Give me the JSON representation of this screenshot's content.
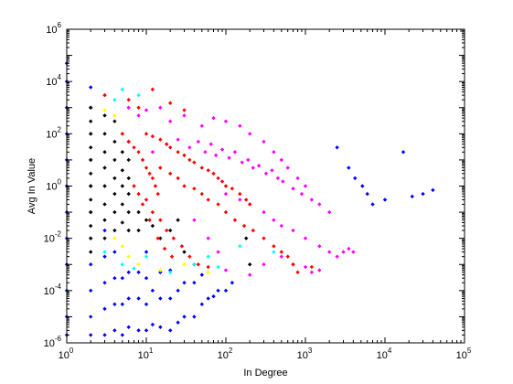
{
  "chart_data": {
    "type": "scatter",
    "title": "",
    "xlabel": "In Degree",
    "ylabel": "Avg In Value",
    "xscale": "log",
    "yscale": "log",
    "xlim": [
      1,
      100000
    ],
    "ylim": [
      1e-06,
      1000000
    ],
    "grid": false,
    "legend": "none",
    "x_ticks": [
      {
        "base": "10",
        "exp": "0",
        "value": 1
      },
      {
        "base": "10",
        "exp": "1",
        "value": 10
      },
      {
        "base": "10",
        "exp": "2",
        "value": 100
      },
      {
        "base": "10",
        "exp": "3",
        "value": 1000
      },
      {
        "base": "10",
        "exp": "4",
        "value": 10000
      },
      {
        "base": "10",
        "exp": "5",
        "value": 100000
      }
    ],
    "y_ticks": [
      {
        "base": "10",
        "exp": "-6",
        "value": 1e-06
      },
      {
        "base": "10",
        "exp": "-4",
        "value": 0.0001
      },
      {
        "base": "10",
        "exp": "-2",
        "value": 0.01
      },
      {
        "base": "10",
        "exp": "0",
        "value": 1
      },
      {
        "base": "10",
        "exp": "2",
        "value": 100
      },
      {
        "base": "10",
        "exp": "4",
        "value": 10000
      },
      {
        "base": "10",
        "exp": "6",
        "value": 1000000
      }
    ],
    "series": [
      {
        "color": "#0000ff",
        "points": [
          [
            1,
            2e-06
          ],
          [
            1,
            1e-05
          ],
          [
            1,
            0.0001
          ],
          [
            1,
            0.001
          ],
          [
            1,
            0.01
          ],
          [
            1,
            0.1
          ],
          [
            1,
            1
          ],
          [
            1,
            10
          ],
          [
            1,
            100
          ],
          [
            1,
            1000
          ],
          [
            1,
            10000
          ],
          [
            1,
            50000
          ],
          [
            2,
            2e-06
          ],
          [
            2,
            1e-05
          ],
          [
            2,
            0.0001
          ],
          [
            2,
            0.001
          ],
          [
            2,
            0.01
          ],
          [
            2,
            0.1
          ],
          [
            2,
            1
          ],
          [
            2,
            10
          ],
          [
            2,
            100
          ],
          [
            2,
            1000
          ],
          [
            2,
            6000
          ],
          [
            3,
            2e-06
          ],
          [
            3,
            2e-05
          ],
          [
            3,
            0.0002
          ],
          [
            3,
            0.002
          ],
          [
            3,
            0.02
          ],
          [
            3,
            3000
          ],
          [
            4,
            3e-06
          ],
          [
            4,
            3e-05
          ],
          [
            4,
            0.0003
          ],
          [
            4,
            0.003
          ],
          [
            5,
            2e-06
          ],
          [
            5,
            3e-05
          ],
          [
            5,
            0.0003
          ],
          [
            6,
            4e-06
          ],
          [
            6,
            5e-05
          ],
          [
            6,
            0.0005
          ],
          [
            8,
            3e-06
          ],
          [
            8,
            5e-05
          ],
          [
            8,
            0.0005
          ],
          [
            10,
            3e-06
          ],
          [
            10,
            3e-05
          ],
          [
            10,
            0.0003
          ],
          [
            10,
            0.003
          ],
          [
            12,
            5e-06
          ],
          [
            12,
            0.0001
          ],
          [
            15,
            4e-06
          ],
          [
            15,
            5e-05
          ],
          [
            15,
            0.0005
          ],
          [
            20,
            3e-06
          ],
          [
            20,
            5e-05
          ],
          [
            20,
            0.0006
          ],
          [
            25,
            6e-06
          ],
          [
            25,
            0.0001
          ],
          [
            30,
            1e-05
          ],
          [
            30,
            0.0002
          ],
          [
            40,
            1e-05
          ],
          [
            40,
            0.0002
          ],
          [
            50,
            3e-05
          ],
          [
            50,
            0.0004
          ],
          [
            60,
            5e-05
          ],
          [
            70,
            6e-05
          ],
          [
            80,
            0.0001
          ],
          [
            100,
            0.0001
          ],
          [
            120,
            0.0002
          ],
          [
            2500,
            30
          ],
          [
            3500,
            5
          ],
          [
            4200,
            2
          ],
          [
            5200,
            1
          ],
          [
            6000,
            0.5
          ],
          [
            7000,
            0.2
          ],
          [
            10000,
            0.3
          ],
          [
            17000,
            20
          ],
          [
            22000,
            0.4
          ],
          [
            30000,
            0.5
          ],
          [
            40000,
            0.7
          ]
        ]
      },
      {
        "color": "#000000",
        "points": [
          [
            2,
            1000
          ],
          [
            2,
            300
          ],
          [
            2,
            100
          ],
          [
            2,
            30
          ],
          [
            2,
            10
          ],
          [
            2,
            3
          ],
          [
            2,
            1
          ],
          [
            2,
            0.3
          ],
          [
            2,
            0.1
          ],
          [
            2,
            0.03
          ],
          [
            2,
            0.01
          ],
          [
            2,
            0.003
          ],
          [
            3,
            500
          ],
          [
            3,
            100
          ],
          [
            3,
            20
          ],
          [
            3,
            5
          ],
          [
            3,
            1
          ],
          [
            3,
            0.2
          ],
          [
            3,
            0.05
          ],
          [
            3,
            0.01
          ],
          [
            4,
            300
          ],
          [
            4,
            50
          ],
          [
            4,
            10
          ],
          [
            4,
            2
          ],
          [
            4,
            0.5
          ],
          [
            4,
            0.1
          ],
          [
            4,
            0.02
          ],
          [
            5,
            100
          ],
          [
            5,
            20
          ],
          [
            5,
            4
          ],
          [
            5,
            1
          ],
          [
            5,
            0.2
          ],
          [
            5,
            0.04
          ],
          [
            6,
            50
          ],
          [
            6,
            10
          ],
          [
            6,
            2
          ],
          [
            6,
            0.5
          ],
          [
            6,
            0.1
          ],
          [
            6,
            0.02
          ],
          [
            8,
            0.1
          ],
          [
            8,
            0.02
          ],
          [
            10,
            0.05
          ],
          [
            12,
            0.03
          ],
          [
            15,
            0.01
          ],
          [
            20,
            0.02
          ],
          [
            25,
            0.05
          ],
          [
            30,
            0.003
          ],
          [
            40,
            0.001
          ],
          [
            180,
            0.01
          ],
          [
            200,
            0.001
          ]
        ]
      },
      {
        "color": "#ffff00",
        "points": [
          [
            3,
            3000
          ],
          [
            3,
            800
          ],
          [
            4,
            500
          ],
          [
            5,
            100
          ],
          [
            4,
            0.01
          ],
          [
            5,
            0.005
          ],
          [
            6,
            0.002
          ],
          [
            8,
            0.001
          ],
          [
            15,
            0.0006
          ],
          [
            30,
            0.001
          ],
          [
            60,
            0.0005
          ]
        ]
      },
      {
        "color": "#00ffff",
        "points": [
          [
            5,
            5000
          ],
          [
            4,
            2000
          ],
          [
            6,
            1000
          ],
          [
            8,
            3000
          ],
          [
            3,
            0.003
          ],
          [
            5,
            0.001
          ],
          [
            7,
            0.0007
          ],
          [
            10,
            0.002
          ],
          [
            20,
            0.0005
          ],
          [
            40,
            0.001
          ],
          [
            60,
            0.002
          ],
          [
            80,
            0.0008
          ],
          [
            150,
            0.005
          ],
          [
            400,
            0.003
          ]
        ]
      },
      {
        "color": "#ff00ff",
        "points": [
          [
            6,
            1000
          ],
          [
            8,
            500
          ],
          [
            10,
            800
          ],
          [
            15,
            1000
          ],
          [
            20,
            300
          ],
          [
            30,
            500
          ],
          [
            50,
            200
          ],
          [
            70,
            400
          ],
          [
            100,
            300
          ],
          [
            150,
            200
          ],
          [
            200,
            100
          ],
          [
            300,
            50
          ],
          [
            400,
            20
          ],
          [
            500,
            10
          ],
          [
            600,
            5
          ],
          [
            800,
            2
          ],
          [
            1000,
            1
          ],
          [
            12,
            20
          ],
          [
            18,
            40
          ],
          [
            25,
            60
          ],
          [
            35,
            30
          ],
          [
            45,
            50
          ],
          [
            55,
            20
          ],
          [
            65,
            40
          ],
          [
            75,
            15
          ],
          [
            90,
            25
          ],
          [
            110,
            12
          ],
          [
            130,
            20
          ],
          [
            160,
            8
          ],
          [
            190,
            10
          ],
          [
            220,
            5
          ],
          [
            260,
            6
          ],
          [
            320,
            3
          ],
          [
            380,
            4
          ],
          [
            450,
            2
          ],
          [
            520,
            1.5
          ],
          [
            700,
            0.8
          ],
          [
            900,
            0.5
          ],
          [
            1200,
            0.3
          ],
          [
            1500,
            0.2
          ],
          [
            2000,
            0.1
          ],
          [
            100,
            0.5
          ],
          [
            150,
            0.3
          ],
          [
            200,
            0.2
          ],
          [
            300,
            0.1
          ],
          [
            400,
            0.05
          ],
          [
            500,
            0.03
          ],
          [
            700,
            0.02
          ],
          [
            1000,
            0.01
          ],
          [
            1500,
            0.005
          ],
          [
            2000,
            0.003
          ],
          [
            2500,
            0.002
          ],
          [
            3000,
            0.003
          ],
          [
            3500,
            0.004
          ],
          [
            4000,
            0.003
          ],
          [
            300,
            0.001
          ],
          [
            500,
            0.002
          ],
          [
            700,
            0.001
          ],
          [
            1000,
            0.0008
          ],
          [
            1200,
            0.0005
          ],
          [
            1500,
            0.0006
          ],
          [
            200,
            0.0004
          ],
          [
            100,
            0.0006
          ],
          [
            80,
            0.003
          ],
          [
            60,
            0.01
          ],
          [
            40,
            0.05
          ]
        ]
      },
      {
        "color": "#ff0000",
        "points": [
          [
            3,
            3000
          ],
          [
            6,
            2000
          ],
          [
            8,
            1000
          ],
          [
            12,
            5000
          ],
          [
            20,
            1500
          ],
          [
            30,
            800
          ],
          [
            5,
            100
          ],
          [
            6,
            50
          ],
          [
            7,
            30
          ],
          [
            8,
            20
          ],
          [
            9,
            10
          ],
          [
            10,
            5
          ],
          [
            11,
            3
          ],
          [
            12,
            2
          ],
          [
            13,
            1
          ],
          [
            14,
            0.5
          ],
          [
            10,
            100
          ],
          [
            12,
            80
          ],
          [
            15,
            60
          ],
          [
            18,
            40
          ],
          [
            20,
            30
          ],
          [
            25,
            20
          ],
          [
            30,
            15
          ],
          [
            35,
            10
          ],
          [
            40,
            8
          ],
          [
            50,
            5
          ],
          [
            60,
            4
          ],
          [
            70,
            3
          ],
          [
            80,
            2
          ],
          [
            90,
            1.5
          ],
          [
            100,
            1
          ],
          [
            120,
            0.8
          ],
          [
            150,
            0.5
          ],
          [
            180,
            0.3
          ],
          [
            200,
            0.2
          ],
          [
            15,
            5
          ],
          [
            20,
            3
          ],
          [
            25,
            2
          ],
          [
            30,
            1
          ],
          [
            40,
            0.8
          ],
          [
            50,
            0.5
          ],
          [
            60,
            0.3
          ],
          [
            80,
            0.2
          ],
          [
            100,
            0.1
          ],
          [
            130,
            0.05
          ],
          [
            170,
            0.03
          ],
          [
            220,
            0.02
          ],
          [
            300,
            0.01
          ],
          [
            400,
            0.005
          ],
          [
            8,
            0.5
          ],
          [
            10,
            0.3
          ],
          [
            12,
            0.1
          ],
          [
            15,
            0.05
          ],
          [
            18,
            0.02
          ],
          [
            22,
            0.01
          ],
          [
            28,
            0.005
          ],
          [
            35,
            0.002
          ],
          [
            45,
            0.001
          ],
          [
            60,
            0.0008
          ],
          [
            7,
            1
          ],
          [
            9,
            0.2
          ],
          [
            11,
            0.05
          ],
          [
            14,
            0.01
          ],
          [
            17,
            0.004
          ],
          [
            21,
            0.002
          ],
          [
            500,
            0.003
          ],
          [
            600,
            0.002
          ],
          [
            700,
            0.001
          ],
          [
            800,
            0.0005
          ],
          [
            1200,
            0.0008
          ]
        ]
      }
    ]
  }
}
